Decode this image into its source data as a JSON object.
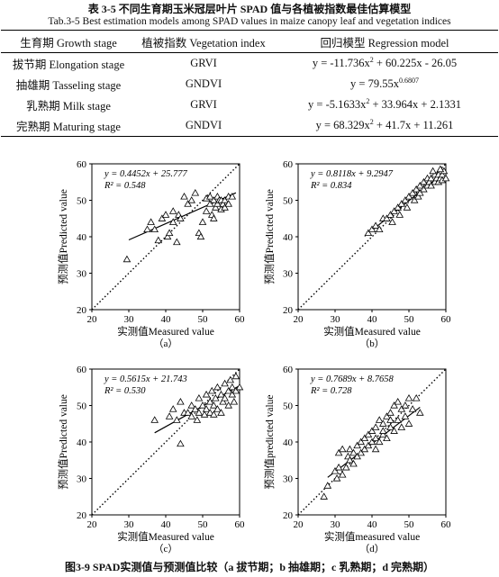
{
  "table": {
    "caption_cn": "表 3-5 不同生育期玉米冠层叶片 SPAD 值与各植被指数最佳估算模型",
    "caption_en": "Tab.3-5 Best estimation models among SPAD values in maize canopy leaf and vegetation indices",
    "headers": [
      "生育期 Growth stage",
      "植被指数 Vegetation index",
      "回归模型 Regression model"
    ],
    "rows": [
      {
        "stage": "拔节期 Elongation stage",
        "index": "GRVI",
        "model_html": "y = -11.736x<sup>2</sup> + 60.225x - 26.05"
      },
      {
        "stage": "抽雄期 Tasseling stage",
        "index": "GNDVI",
        "model_html": "y = 79.55x<sup>0.6807</sup>"
      },
      {
        "stage": "乳熟期 Milk stage",
        "index": "GRVI",
        "model_html": "y = -5.1633x<sup>2</sup> + 33.964x + 2.1331"
      },
      {
        "stage": "完熟期 Maturing stage",
        "index": "GNDVI",
        "model_html": "y = 68.329x<sup>2</sup> + 41.7x + 11.261"
      }
    ]
  },
  "figure_caption": "图3-9 SPAD实测值与预测值比较（a 拔节期；b 抽雄期；c 乳熟期；d 完熟期）",
  "chart_data": [
    {
      "type": "scatter",
      "panel": "（a）",
      "xlabel": "实测值Measured value",
      "ylabel": "预测值Predicted value",
      "xlim": [
        20,
        60
      ],
      "ylim": [
        20,
        60
      ],
      "xticks": [
        20,
        30,
        40,
        50,
        60
      ],
      "yticks": [
        20,
        30,
        40,
        50,
        60
      ],
      "equation": "y = 0.4452x + 25.777",
      "r2": "R² = 0.548",
      "fit": {
        "slope": 0.4452,
        "intercept": 25.777,
        "x_range": [
          30,
          59
        ]
      },
      "reference_line": "1:1",
      "points": [
        [
          29.5,
          33.8
        ],
        [
          35,
          42
        ],
        [
          36,
          44
        ],
        [
          37,
          42
        ],
        [
          38,
          39
        ],
        [
          39,
          45
        ],
        [
          40,
          46
        ],
        [
          40.5,
          40
        ],
        [
          41,
          41
        ],
        [
          42,
          44
        ],
        [
          42,
          47
        ],
        [
          43,
          38.5
        ],
        [
          43.5,
          46
        ],
        [
          44,
          45
        ],
        [
          45,
          51
        ],
        [
          46,
          49
        ],
        [
          47,
          50
        ],
        [
          48,
          52
        ],
        [
          49,
          41
        ],
        [
          49.5,
          40
        ],
        [
          50,
          44
        ],
        [
          51,
          47
        ],
        [
          51,
          50.5
        ],
        [
          52,
          49
        ],
        [
          52,
          51
        ],
        [
          52.5,
          46
        ],
        [
          53,
          50
        ],
        [
          53,
          45
        ],
        [
          53.5,
          48
        ],
        [
          54,
          49
        ],
        [
          54,
          51
        ],
        [
          54.5,
          50
        ],
        [
          55,
          50
        ],
        [
          55,
          47.5
        ],
        [
          55.5,
          49
        ],
        [
          56,
          50
        ],
        [
          56,
          48
        ],
        [
          57,
          51
        ],
        [
          57,
          49
        ],
        [
          58,
          51
        ]
      ]
    },
    {
      "type": "scatter",
      "panel": "（b）",
      "xlabel": "实测值Measured value",
      "ylabel": "预测值Predicted value",
      "xlim": [
        20,
        60
      ],
      "ylim": [
        20,
        60
      ],
      "xticks": [
        20,
        30,
        40,
        50,
        60
      ],
      "yticks": [
        20,
        30,
        40,
        50,
        60
      ],
      "equation": "y = 0.8118x + 9.2947",
      "r2": "R² = 0.834",
      "fit": {
        "slope": 0.8118,
        "intercept": 9.2947,
        "x_range": [
          38,
          60
        ]
      },
      "reference_line": "1:1",
      "points": [
        [
          39,
          41
        ],
        [
          40,
          42
        ],
        [
          41,
          43
        ],
        [
          42,
          42
        ],
        [
          43,
          45
        ],
        [
          44,
          45
        ],
        [
          45,
          46
        ],
        [
          45.5,
          44
        ],
        [
          46,
          47
        ],
        [
          47,
          48
        ],
        [
          47.5,
          46
        ],
        [
          48,
          49
        ],
        [
          49,
          50
        ],
        [
          49.5,
          48
        ],
        [
          50,
          51
        ],
        [
          51,
          52
        ],
        [
          51.5,
          50
        ],
        [
          52,
          53
        ],
        [
          52.5,
          51
        ],
        [
          53,
          54
        ],
        [
          53,
          52
        ],
        [
          54,
          55
        ],
        [
          54,
          53
        ],
        [
          55,
          56
        ],
        [
          55,
          54
        ],
        [
          55.5,
          55
        ],
        [
          56,
          56
        ],
        [
          56,
          54
        ],
        [
          57,
          57
        ],
        [
          57,
          55
        ],
        [
          57.5,
          56
        ],
        [
          58,
          57
        ],
        [
          58,
          55
        ],
        [
          58.5,
          56
        ],
        [
          59,
          57
        ],
        [
          59,
          55.5
        ],
        [
          59.5,
          58
        ],
        [
          60,
          56
        ],
        [
          56.5,
          58
        ],
        [
          58.5,
          58.5
        ]
      ]
    },
    {
      "type": "scatter",
      "panel": "（c）",
      "xlabel": "实测值Measured value",
      "ylabel": "预测值Predicted value",
      "xlim": [
        20,
        60
      ],
      "ylim": [
        20,
        60
      ],
      "xticks": [
        20,
        30,
        40,
        50,
        60
      ],
      "yticks": [
        20,
        30,
        40,
        50,
        60
      ],
      "equation": "y = 0.5615x + 21.743",
      "r2": "R² = 0.530",
      "fit": {
        "slope": 0.5615,
        "intercept": 21.743,
        "x_range": [
          37,
          60
        ]
      },
      "reference_line": "1:1",
      "points": [
        [
          37,
          46
        ],
        [
          41,
          47
        ],
        [
          42,
          49
        ],
        [
          43,
          46
        ],
        [
          44,
          51
        ],
        [
          44,
          39.5
        ],
        [
          45,
          48
        ],
        [
          46,
          48
        ],
        [
          47,
          50
        ],
        [
          47,
          47
        ],
        [
          48,
          49
        ],
        [
          48.5,
          46
        ],
        [
          49,
          52
        ],
        [
          49,
          48
        ],
        [
          50,
          50
        ],
        [
          50.5,
          47.5
        ],
        [
          51,
          53
        ],
        [
          51,
          49
        ],
        [
          52,
          51
        ],
        [
          52,
          48
        ],
        [
          52.5,
          54
        ],
        [
          53,
          50
        ],
        [
          53,
          47.5
        ],
        [
          53.5,
          52
        ],
        [
          54,
          49
        ],
        [
          54,
          55
        ],
        [
          55,
          53
        ],
        [
          55,
          48
        ],
        [
          55.5,
          51
        ],
        [
          56,
          56
        ],
        [
          56,
          52
        ],
        [
          57,
          54
        ],
        [
          57,
          50
        ],
        [
          57.5,
          57
        ],
        [
          58,
          53
        ],
        [
          58,
          55
        ],
        [
          59,
          58
        ],
        [
          59,
          54
        ],
        [
          60,
          55
        ],
        [
          58.5,
          51
        ]
      ]
    },
    {
      "type": "scatter",
      "panel": "（d）",
      "xlabel": "实测值measured value",
      "ylabel": "预测值predicted value",
      "xlim": [
        20,
        60
      ],
      "ylim": [
        20,
        60
      ],
      "xticks": [
        20,
        30,
        40,
        50,
        60
      ],
      "yticks": [
        20,
        30,
        40,
        50,
        60
      ],
      "equation": "y = 0.7689x + 8.7658",
      "r2": "R² = 0.728",
      "fit": {
        "slope": 0.7689,
        "intercept": 8.7658,
        "x_range": [
          28,
          53
        ]
      },
      "reference_line": "1:1",
      "points": [
        [
          27,
          25
        ],
        [
          28,
          28
        ],
        [
          30,
          32
        ],
        [
          30.5,
          30
        ],
        [
          31,
          37
        ],
        [
          31,
          33
        ],
        [
          32,
          31
        ],
        [
          32,
          38
        ],
        [
          33,
          33
        ],
        [
          33.5,
          36
        ],
        [
          34,
          35
        ],
        [
          34,
          38
        ],
        [
          35,
          37
        ],
        [
          35,
          34
        ],
        [
          36,
          39
        ],
        [
          36,
          36
        ],
        [
          37,
          40
        ],
        [
          37,
          37
        ],
        [
          38,
          38
        ],
        [
          38,
          41
        ],
        [
          39,
          42
        ],
        [
          39,
          39
        ],
        [
          40,
          40
        ],
        [
          40,
          43
        ],
        [
          41,
          44
        ],
        [
          41,
          41
        ],
        [
          42,
          46
        ],
        [
          42,
          40
        ],
        [
          43,
          42
        ],
        [
          43,
          45
        ],
        [
          44,
          41
        ],
        [
          44,
          47
        ],
        [
          45,
          44
        ],
        [
          45,
          48
        ],
        [
          46,
          43
        ],
        [
          46,
          50
        ],
        [
          47,
          46
        ],
        [
          47,
          51
        ],
        [
          48,
          44
        ],
        [
          48,
          49
        ],
        [
          49,
          47
        ],
        [
          50,
          52
        ],
        [
          50,
          45
        ],
        [
          51,
          49
        ],
        [
          52,
          52
        ],
        [
          53,
          48
        ],
        [
          49,
          50
        ],
        [
          45,
          46
        ],
        [
          43,
          43
        ],
        [
          41,
          38
        ]
      ]
    }
  ]
}
